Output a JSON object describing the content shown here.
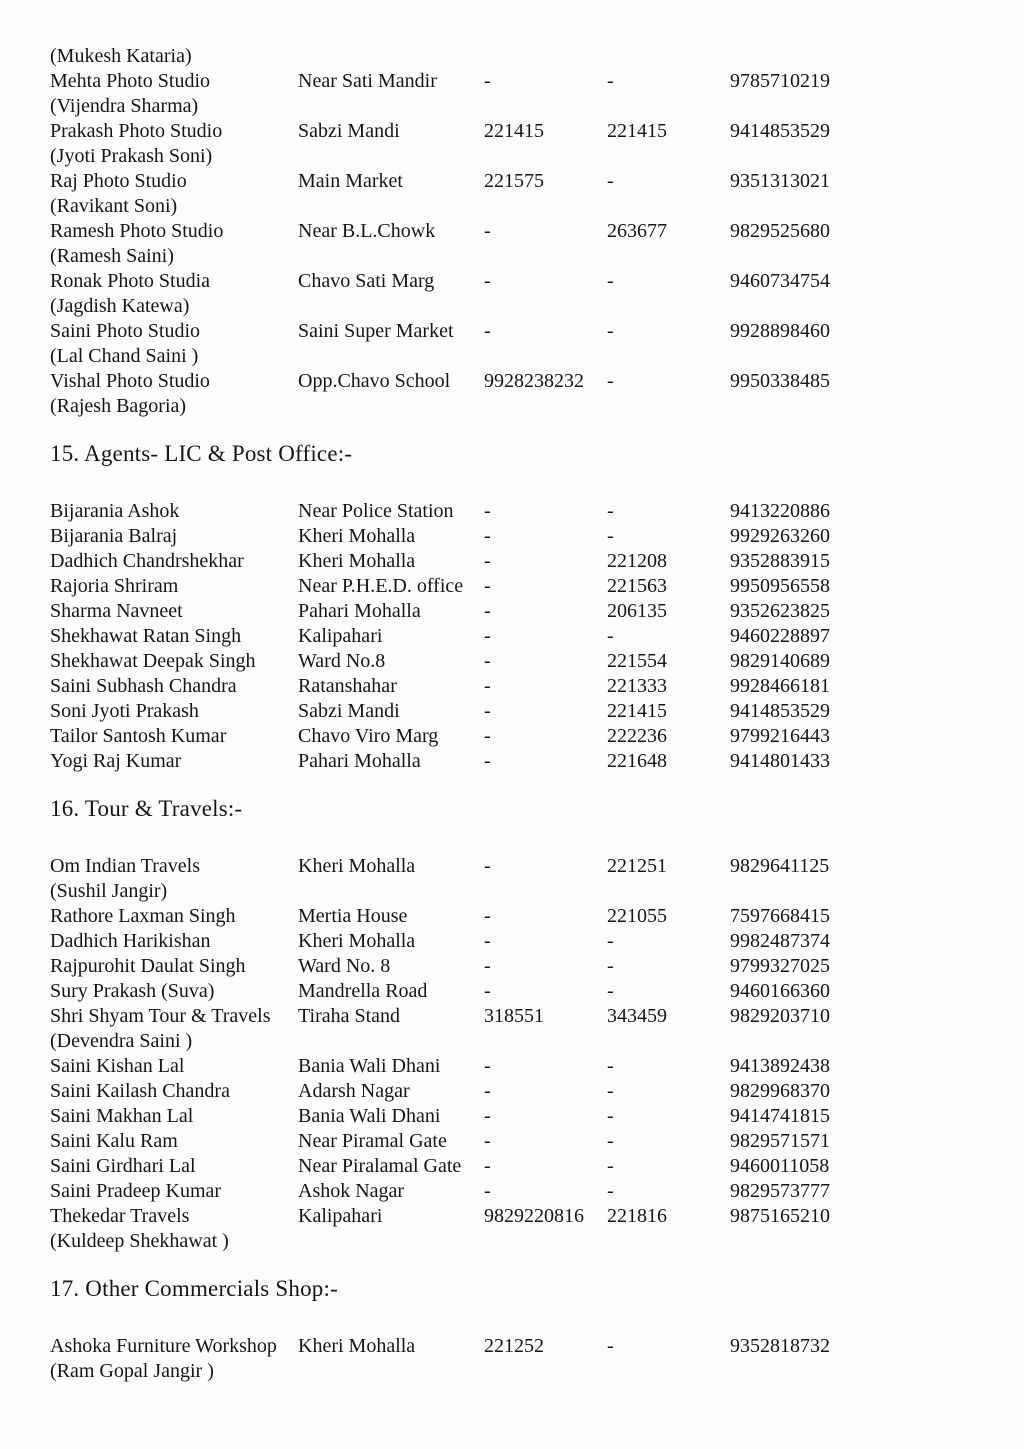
{
  "colors": {
    "background": "#fdfdfd",
    "text": "#161616"
  },
  "sections": [
    {
      "heading": null,
      "rows": [
        {
          "lines": [
            "(Mukesh Kataria)"
          ],
          "address": "",
          "phone1": "",
          "phone2": "",
          "mobile": ""
        },
        {
          "lines": [
            "Mehta Photo Studio",
            "(Vijendra Sharma)"
          ],
          "address": "Near Sati Mandir",
          "phone1": "-",
          "phone2": "-",
          "mobile": "9785710219"
        },
        {
          "lines": [
            "Prakash Photo Studio",
            "(Jyoti Prakash Soni)"
          ],
          "address": "Sabzi Mandi",
          "phone1": "221415",
          "phone2": "221415",
          "mobile": "9414853529"
        },
        {
          "lines": [
            "Raj Photo Studio",
            "(Ravikant Soni)"
          ],
          "address": "Main Market",
          "phone1": "221575",
          "phone2": "-",
          "mobile": "9351313021"
        },
        {
          "lines": [
            "Ramesh Photo Studio",
            "(Ramesh Saini)"
          ],
          "address": "Near B.L.Chowk",
          "phone1": "-",
          "phone2": "263677",
          "mobile": "9829525680"
        },
        {
          "lines": [
            "Ronak Photo Studia",
            "(Jagdish Katewa)"
          ],
          "address": "Chavo Sati Marg",
          "phone1": "-",
          "phone2": "-",
          "mobile": "9460734754"
        },
        {
          "lines": [
            "Saini Photo Studio",
            "(Lal Chand Saini )"
          ],
          "address": "Saini Super Market",
          "phone1": "-",
          "phone2": "-",
          "mobile": "9928898460"
        },
        {
          "lines": [
            "Vishal Photo Studio",
            "(Rajesh Bagoria)"
          ],
          "address": "Opp.Chavo School",
          "phone1": "9928238232",
          "phone2": "-",
          "mobile": "9950338485"
        }
      ]
    },
    {
      "heading": "15. Agents- LIC & Post Office:-",
      "rows": [
        {
          "lines": [
            "Bijarania Ashok"
          ],
          "address": "Near Police Station",
          "phone1": "-",
          "phone2": "-",
          "mobile": "9413220886"
        },
        {
          "lines": [
            "Bijarania Balraj"
          ],
          "address": "Kheri Mohalla",
          "phone1": "-",
          "phone2": "-",
          "mobile": "9929263260"
        },
        {
          "lines": [
            "Dadhich Chandrshekhar"
          ],
          "address": "Kheri Mohalla",
          "phone1": "-",
          "phone2": "221208",
          "mobile": "9352883915"
        },
        {
          "lines": [
            "Rajoria Shriram"
          ],
          "address": "Near P.H.E.D. office",
          "phone1": "-",
          "phone2": "221563",
          "mobile": "9950956558"
        },
        {
          "lines": [
            "Sharma Navneet"
          ],
          "address": "Pahari Mohalla",
          "phone1": "-",
          "phone2": "206135",
          "mobile": "9352623825"
        },
        {
          "lines": [
            "Shekhawat Ratan Singh"
          ],
          "address": "Kalipahari",
          "phone1": "-",
          "phone2": "-",
          "mobile": "9460228897"
        },
        {
          "lines": [
            "Shekhawat Deepak Singh"
          ],
          "address": "Ward No.8",
          "phone1": "-",
          "phone2": "221554",
          "mobile": "9829140689"
        },
        {
          "lines": [
            "Saini Subhash Chandra"
          ],
          "address": "Ratanshahar",
          "phone1": "-",
          "phone2": "221333",
          "mobile": "9928466181"
        },
        {
          "lines": [
            "Soni Jyoti Prakash"
          ],
          "address": "Sabzi Mandi",
          "phone1": "-",
          "phone2": "221415",
          "mobile": "9414853529"
        },
        {
          "lines": [
            "Tailor Santosh Kumar"
          ],
          "address": "Chavo Viro Marg",
          "phone1": "-",
          "phone2": "222236",
          "mobile": "9799216443"
        },
        {
          "lines": [
            "Yogi Raj Kumar"
          ],
          "address": "Pahari Mohalla",
          "phone1": "-",
          "phone2": "221648",
          "mobile": "9414801433"
        }
      ]
    },
    {
      "heading": "16. Tour & Travels:-",
      "rows": [
        {
          "lines": [
            "Om Indian Travels",
            "(Sushil Jangir)"
          ],
          "address": "Kheri Mohalla",
          "phone1": "-",
          "phone2": "221251",
          "mobile": "9829641125"
        },
        {
          "lines": [
            "Rathore Laxman Singh"
          ],
          "address": "Mertia House",
          "phone1": "-",
          "phone2": "221055",
          "mobile": "7597668415"
        },
        {
          "lines": [
            "Dadhich Harikishan"
          ],
          "address": "Kheri Mohalla",
          "phone1": "-",
          "phone2": "-",
          "mobile": "9982487374"
        },
        {
          "lines": [
            "Rajpurohit Daulat Singh"
          ],
          "address": "Ward No. 8",
          "phone1": "-",
          "phone2": "-",
          "mobile": "9799327025"
        },
        {
          "lines": [
            "Sury Prakash (Suva)"
          ],
          "address": "Mandrella Road",
          "phone1": "-",
          "phone2": "-",
          "mobile": "9460166360"
        },
        {
          "lines": [
            "Shri Shyam Tour & Travels",
            "(Devendra Saini )"
          ],
          "address": "Tiraha Stand",
          "phone1": "318551",
          "phone2": "343459",
          "mobile": "9829203710"
        },
        {
          "lines": [
            "Saini Kishan Lal"
          ],
          "address": "Bania Wali Dhani",
          "phone1": "-",
          "phone2": "-",
          "mobile": "9413892438"
        },
        {
          "lines": [
            "Saini Kailash Chandra"
          ],
          "address": "Adarsh Nagar",
          "phone1": "-",
          "phone2": "-",
          "mobile": "9829968370"
        },
        {
          "lines": [
            "Saini Makhan Lal"
          ],
          "address": "Bania Wali Dhani",
          "phone1": "-",
          "phone2": "-",
          "mobile": "9414741815"
        },
        {
          "lines": [
            "Saini Kalu Ram"
          ],
          "address": "Near Piramal Gate",
          "phone1": "-",
          "phone2": "-",
          "mobile": "9829571571"
        },
        {
          "lines": [
            "Saini Girdhari Lal"
          ],
          "address": "Near Piralamal Gate",
          "phone1": "-",
          "phone2": "-",
          "mobile": "9460011058"
        },
        {
          "lines": [
            "Saini Pradeep Kumar"
          ],
          "address": "Ashok Nagar",
          "phone1": "-",
          "phone2": "-",
          "mobile": "9829573777"
        },
        {
          "lines": [
            "Thekedar Travels",
            "(Kuldeep Shekhawat )"
          ],
          "address": "Kalipahari",
          "phone1": "9829220816",
          "phone2": "221816",
          "mobile": "9875165210"
        }
      ]
    },
    {
      "heading": "17. Other Commercials Shop:-",
      "rows": [
        {
          "lines": [
            "Ashoka Furniture Workshop",
            "(Ram Gopal Jangir )"
          ],
          "address": "Kheri Mohalla",
          "phone1": "221252",
          "phone2": "-",
          "mobile": "9352818732"
        }
      ]
    }
  ]
}
